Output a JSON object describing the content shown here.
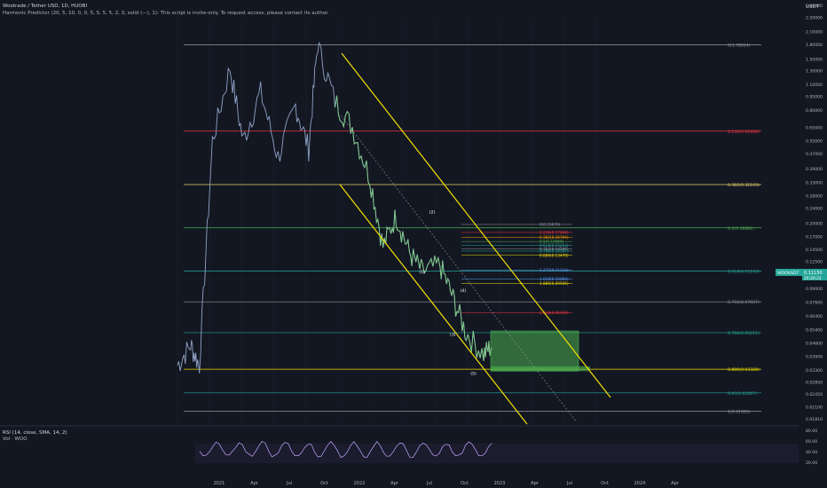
{
  "header": {
    "symbol_line": "Wootrade / Tether USD, 1D, HUOBI",
    "indicator_line": "Harmonic Predictor (20, 5, 10, 0, 0, 5, 5, 5, 5, 2, 3, solid (—), 1): This script is invite-only. To request access, please contact its author.",
    "currency": "USDT"
  },
  "rsi_panel": {
    "label": "RSI (14, close, SMA, 14, 2)",
    "vol_label": "Vol · WOO",
    "ticks": [
      "80.00",
      "60.00",
      "40.00",
      "20.00"
    ]
  },
  "price_label": {
    "symbol": "WOOUSDT",
    "price": "0.11150",
    "countdown": "20:20:21"
  },
  "colors": {
    "background": "#131722",
    "candle": "#8fa3c7",
    "candle_highlight": "#7fc98a",
    "channel": "#f4e000",
    "pattern_zone": "#4caf50"
  },
  "chart_data": {
    "type": "line",
    "title": "Wootrade / Tether USD, 1D, HUOBI",
    "yscale": "log",
    "y_ticks": [
      "2.90000",
      "2.50000",
      "2.10000",
      "1.80000",
      "1.50000",
      "1.30000",
      "1.10000",
      "0.95000",
      "0.80000",
      "0.65000",
      "0.55000",
      "0.47000",
      "0.39000",
      "0.33000",
      "0.28000",
      "0.24000",
      "0.20000",
      "0.17000",
      "0.14500",
      "0.12500",
      "0.10500",
      "0.09000",
      "0.07600",
      "0.06400",
      "0.05400",
      "0.04600",
      "0.03900",
      "0.03300",
      "0.02850",
      "0.02450",
      "0.02100",
      "0.01810"
    ],
    "x_ticks": [
      "2021",
      "Apr",
      "Jul",
      "Oct",
      "2022",
      "Apr",
      "Jul",
      "Oct",
      "2023",
      "Apr",
      "Jul",
      "Oct",
      "2024",
      "Apr"
    ],
    "fib_levels": [
      {
        "label": "0(1.78814)",
        "value": 1.78814,
        "color": "#9598a1"
      },
      {
        "label": "0.236(0.61906)",
        "value": 0.61906,
        "color": "#f23645"
      },
      {
        "label": "0.382(0.32103)",
        "value": 0.32103,
        "color": "#e0d36a"
      },
      {
        "label": "0.5(0.18881)",
        "value": 0.18881,
        "color": "#4caf50"
      },
      {
        "label": "0.618(0.11103)",
        "value": 0.11103,
        "color": "#26a69a"
      },
      {
        "label": "0.702(0.07607)",
        "value": 0.07607,
        "color": "#9598a1"
      },
      {
        "label": "0.786(0.05211)",
        "value": 0.05211,
        "color": "#22ab94"
      },
      {
        "label": "0.886(0.03328)",
        "value": 0.03328,
        "color": "#f4e000"
      },
      {
        "label": "0.95(0.02487)",
        "value": 0.02487,
        "color": "#26a69a"
      },
      {
        "label": "1(0.01985)",
        "value": 0.01985,
        "color": "#9598a1"
      }
    ],
    "inner_levels": [
      {
        "label": "0(0.19676)",
        "value": 0.19676,
        "color": "#9598a1"
      },
      {
        "label": "0.236(0.17844)",
        "value": 0.17844,
        "color": "#f23645"
      },
      {
        "label": "0.382(0.16794)",
        "value": 0.16794,
        "color": "#f4a000"
      },
      {
        "label": "0.5(0.15964)",
        "value": 0.15964,
        "color": "#4caf50"
      },
      {
        "label": "0.618(0.15213)",
        "value": 0.15213,
        "color": "#26a69a"
      },
      {
        "label": "0.702(0.14596)",
        "value": 0.14596,
        "color": "#9598a1"
      },
      {
        "label": "0.786(0.14187)",
        "value": 0.14187,
        "color": "#22ab94"
      },
      {
        "label": "0.886(0.13470)",
        "value": 0.1347,
        "color": "#f4e000"
      },
      {
        "label": "1.272(0.11234)",
        "value": 0.11234,
        "color": "#5b9cf6"
      },
      {
        "label": "1.618(0.10064)",
        "value": 0.10064,
        "color": "#5b9cf6"
      },
      {
        "label": "1.886(0.09506)",
        "value": 0.09506,
        "color": "#f4e000"
      },
      {
        "label": "2.618(0.06649)",
        "value": 0.06649,
        "color": "#f23645"
      }
    ],
    "wave_labels": [
      {
        "label": "(1)",
        "t": 0.475,
        "v": 0.108
      },
      {
        "label": "(2)",
        "t": 0.495,
        "v": 0.225
      },
      {
        "label": "(3)",
        "t": 0.535,
        "v": 0.05
      },
      {
        "label": "(4)",
        "t": 0.555,
        "v": 0.086
      },
      {
        "label": "(5)",
        "t": 0.575,
        "v": 0.031
      }
    ]
  }
}
